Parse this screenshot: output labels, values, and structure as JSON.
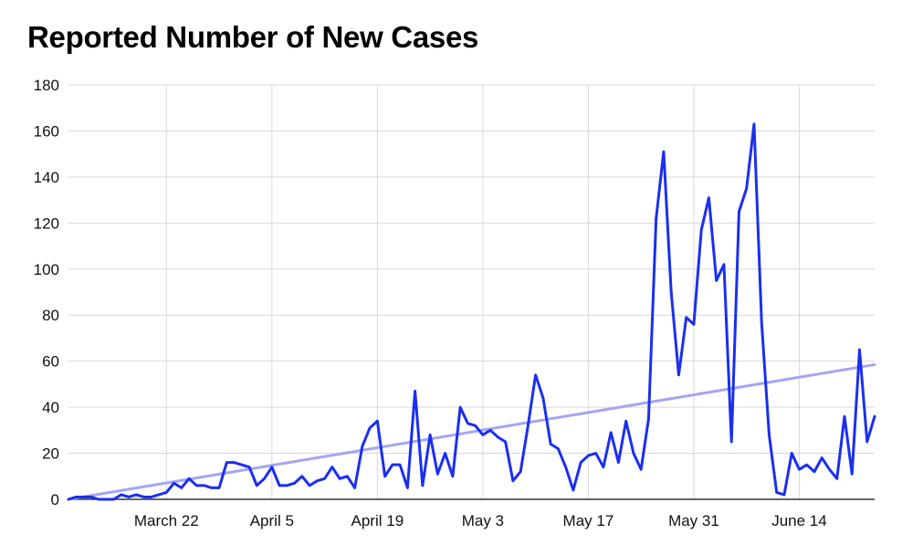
{
  "chart_data": {
    "type": "line",
    "title": "Reported Number of New Cases",
    "xlabel": "",
    "ylabel": "",
    "x_ticks": [
      "March 22",
      "April 5",
      "April 19",
      "May 3",
      "May 17",
      "May 31",
      "June 14"
    ],
    "ylim": [
      0,
      180
    ],
    "y_ticks": [
      "0",
      "20",
      "40",
      "60",
      "80",
      "100",
      "120",
      "140",
      "160",
      "180"
    ],
    "grid": true,
    "legend": "none",
    "x_start": "March 9",
    "x_end": "June 24",
    "series": [
      {
        "style": "solid",
        "color": "#1a2ff0",
        "values": [
          0,
          1,
          1,
          1,
          0,
          0,
          0,
          2,
          1,
          2,
          1,
          1,
          2,
          3,
          7,
          5,
          9,
          6,
          6,
          5,
          5,
          16,
          16,
          15,
          14,
          6,
          9,
          14,
          6,
          6,
          7,
          10,
          6,
          8,
          9,
          14,
          9,
          10,
          5,
          23,
          31,
          34,
          10,
          15,
          15,
          5,
          47,
          6,
          28,
          11,
          20,
          10,
          40,
          33,
          32,
          28,
          30,
          27,
          25,
          8,
          12,
          32,
          54,
          44,
          24,
          22,
          14,
          4,
          16,
          19,
          20,
          14,
          29,
          16,
          34,
          20,
          13,
          35,
          122,
          151,
          90,
          54,
          79,
          76,
          117,
          131,
          95,
          102,
          25,
          125,
          135,
          163,
          77,
          28,
          3,
          2,
          20,
          13,
          15,
          12,
          18,
          13,
          9,
          36,
          11,
          65,
          25,
          36
        ]
      },
      {
        "style": "trendline",
        "color": "#a3a6f4",
        "values": [
          0,
          58.5
        ]
      }
    ]
  }
}
